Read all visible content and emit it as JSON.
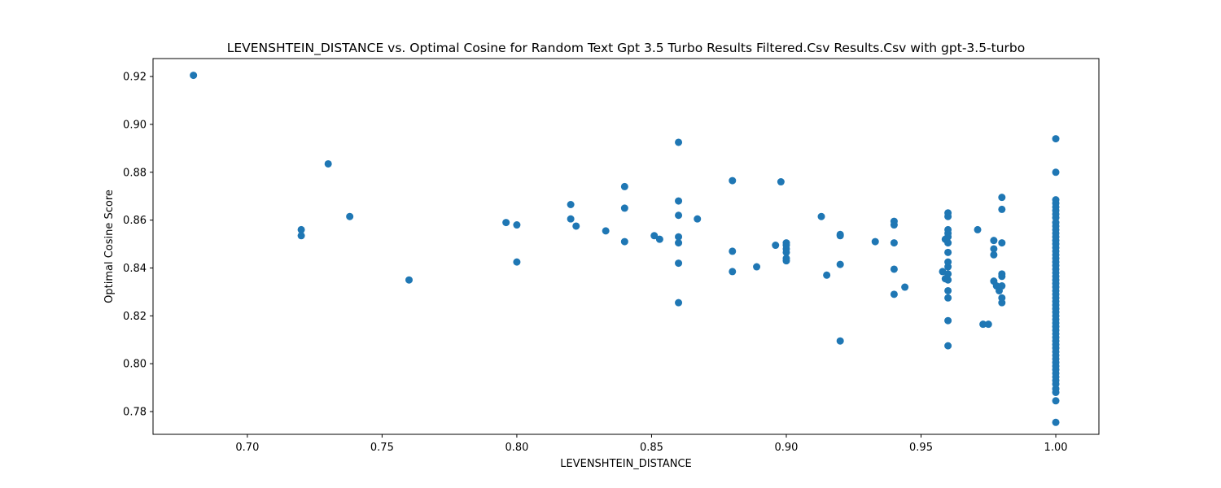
{
  "chart_data": {
    "type": "scatter",
    "title": "LEVENSHTEIN_DISTANCE vs. Optimal Cosine for Random Text Gpt 3.5 Turbo Results Filtered.Csv Results.Csv with gpt-3.5-turbo",
    "xlabel": "LEVENSHTEIN_DISTANCE",
    "ylabel": "Optimal Cosine Score",
    "xlim": [
      0.665,
      1.016
    ],
    "ylim": [
      0.9275,
      0.7705
    ],
    "y_inverted": true,
    "grid": false,
    "legend": "none",
    "color": "#1f77b4",
    "x_ticks": [
      "0.70",
      "0.75",
      "0.80",
      "0.85",
      "0.90",
      "0.95",
      "1.00"
    ],
    "x_tick_values": [
      0.7,
      0.75,
      0.8,
      0.85,
      0.9,
      0.95,
      1.0
    ],
    "y_ticks": [
      "0.78",
      "0.80",
      "0.82",
      "0.84",
      "0.86",
      "0.88",
      "0.90",
      "0.92"
    ],
    "y_tick_values": [
      0.78,
      0.8,
      0.82,
      0.84,
      0.86,
      0.88,
      0.9,
      0.92
    ],
    "points": [
      [
        0.68,
        0.9205
      ],
      [
        0.72,
        0.8535
      ],
      [
        0.72,
        0.856
      ],
      [
        0.73,
        0.8835
      ],
      [
        0.738,
        0.8615
      ],
      [
        0.76,
        0.835
      ],
      [
        0.796,
        0.859
      ],
      [
        0.8,
        0.8425
      ],
      [
        0.8,
        0.858
      ],
      [
        0.82,
        0.8605
      ],
      [
        0.82,
        0.8665
      ],
      [
        0.822,
        0.8575
      ],
      [
        0.833,
        0.8555
      ],
      [
        0.84,
        0.851
      ],
      [
        0.84,
        0.865
      ],
      [
        0.84,
        0.874
      ],
      [
        0.851,
        0.8535
      ],
      [
        0.853,
        0.852
      ],
      [
        0.86,
        0.8255
      ],
      [
        0.86,
        0.842
      ],
      [
        0.86,
        0.8505
      ],
      [
        0.86,
        0.853
      ],
      [
        0.86,
        0.862
      ],
      [
        0.86,
        0.868
      ],
      [
        0.86,
        0.8925
      ],
      [
        0.867,
        0.8605
      ],
      [
        0.88,
        0.8385
      ],
      [
        0.88,
        0.847
      ],
      [
        0.88,
        0.8765
      ],
      [
        0.889,
        0.8405
      ],
      [
        0.896,
        0.8495
      ],
      [
        0.898,
        0.876
      ],
      [
        0.9,
        0.843
      ],
      [
        0.9,
        0.844
      ],
      [
        0.9,
        0.8465
      ],
      [
        0.9,
        0.848
      ],
      [
        0.9,
        0.8495
      ],
      [
        0.9,
        0.8505
      ],
      [
        0.913,
        0.8615
      ],
      [
        0.915,
        0.837
      ],
      [
        0.92,
        0.8095
      ],
      [
        0.92,
        0.8415
      ],
      [
        0.92,
        0.8535
      ],
      [
        0.92,
        0.854
      ],
      [
        0.933,
        0.851
      ],
      [
        0.94,
        0.829
      ],
      [
        0.94,
        0.8395
      ],
      [
        0.94,
        0.8505
      ],
      [
        0.94,
        0.858
      ],
      [
        0.94,
        0.8595
      ],
      [
        0.944,
        0.832
      ],
      [
        0.958,
        0.8385
      ],
      [
        0.959,
        0.8355
      ],
      [
        0.959,
        0.852
      ],
      [
        0.96,
        0.8075
      ],
      [
        0.96,
        0.818
      ],
      [
        0.96,
        0.8275
      ],
      [
        0.96,
        0.8305
      ],
      [
        0.96,
        0.835
      ],
      [
        0.96,
        0.8375
      ],
      [
        0.96,
        0.8405
      ],
      [
        0.96,
        0.8425
      ],
      [
        0.96,
        0.8465
      ],
      [
        0.96,
        0.8505
      ],
      [
        0.96,
        0.853
      ],
      [
        0.96,
        0.8545
      ],
      [
        0.96,
        0.856
      ],
      [
        0.96,
        0.8615
      ],
      [
        0.96,
        0.863
      ],
      [
        0.971,
        0.856
      ],
      [
        0.973,
        0.8165
      ],
      [
        0.975,
        0.8165
      ],
      [
        0.977,
        0.8345
      ],
      [
        0.977,
        0.8455
      ],
      [
        0.977,
        0.848
      ],
      [
        0.977,
        0.8515
      ],
      [
        0.978,
        0.8325
      ],
      [
        0.979,
        0.8305
      ],
      [
        0.98,
        0.8255
      ],
      [
        0.98,
        0.8275
      ],
      [
        0.98,
        0.8325
      ],
      [
        0.98,
        0.8365
      ],
      [
        0.98,
        0.8375
      ],
      [
        0.98,
        0.8505
      ],
      [
        0.98,
        0.8645
      ],
      [
        0.98,
        0.8695
      ],
      [
        1.0,
        0.7755
      ],
      [
        1.0,
        0.7845
      ],
      [
        1.0,
        0.788
      ],
      [
        1.0,
        0.7895
      ],
      [
        1.0,
        0.7915
      ],
      [
        1.0,
        0.793
      ],
      [
        1.0,
        0.7945
      ],
      [
        1.0,
        0.796
      ],
      [
        1.0,
        0.7975
      ],
      [
        1.0,
        0.799
      ],
      [
        1.0,
        0.8005
      ],
      [
        1.0,
        0.802
      ],
      [
        1.0,
        0.8035
      ],
      [
        1.0,
        0.805
      ],
      [
        1.0,
        0.8065
      ],
      [
        1.0,
        0.808
      ],
      [
        1.0,
        0.8095
      ],
      [
        1.0,
        0.811
      ],
      [
        1.0,
        0.8125
      ],
      [
        1.0,
        0.814
      ],
      [
        1.0,
        0.8155
      ],
      [
        1.0,
        0.817
      ],
      [
        1.0,
        0.8185
      ],
      [
        1.0,
        0.82
      ],
      [
        1.0,
        0.8215
      ],
      [
        1.0,
        0.823
      ],
      [
        1.0,
        0.8245
      ],
      [
        1.0,
        0.826
      ],
      [
        1.0,
        0.8275
      ],
      [
        1.0,
        0.829
      ],
      [
        1.0,
        0.8305
      ],
      [
        1.0,
        0.832
      ],
      [
        1.0,
        0.8335
      ],
      [
        1.0,
        0.835
      ],
      [
        1.0,
        0.8365
      ],
      [
        1.0,
        0.838
      ],
      [
        1.0,
        0.8395
      ],
      [
        1.0,
        0.841
      ],
      [
        1.0,
        0.8425
      ],
      [
        1.0,
        0.844
      ],
      [
        1.0,
        0.8455
      ],
      [
        1.0,
        0.847
      ],
      [
        1.0,
        0.8485
      ],
      [
        1.0,
        0.85
      ],
      [
        1.0,
        0.8515
      ],
      [
        1.0,
        0.853
      ],
      [
        1.0,
        0.8545
      ],
      [
        1.0,
        0.856
      ],
      [
        1.0,
        0.8575
      ],
      [
        1.0,
        0.859
      ],
      [
        1.0,
        0.861
      ],
      [
        1.0,
        0.8625
      ],
      [
        1.0,
        0.864
      ],
      [
        1.0,
        0.8655
      ],
      [
        1.0,
        0.867
      ],
      [
        1.0,
        0.8685
      ],
      [
        1.0,
        0.88
      ],
      [
        1.0,
        0.894
      ]
    ]
  }
}
